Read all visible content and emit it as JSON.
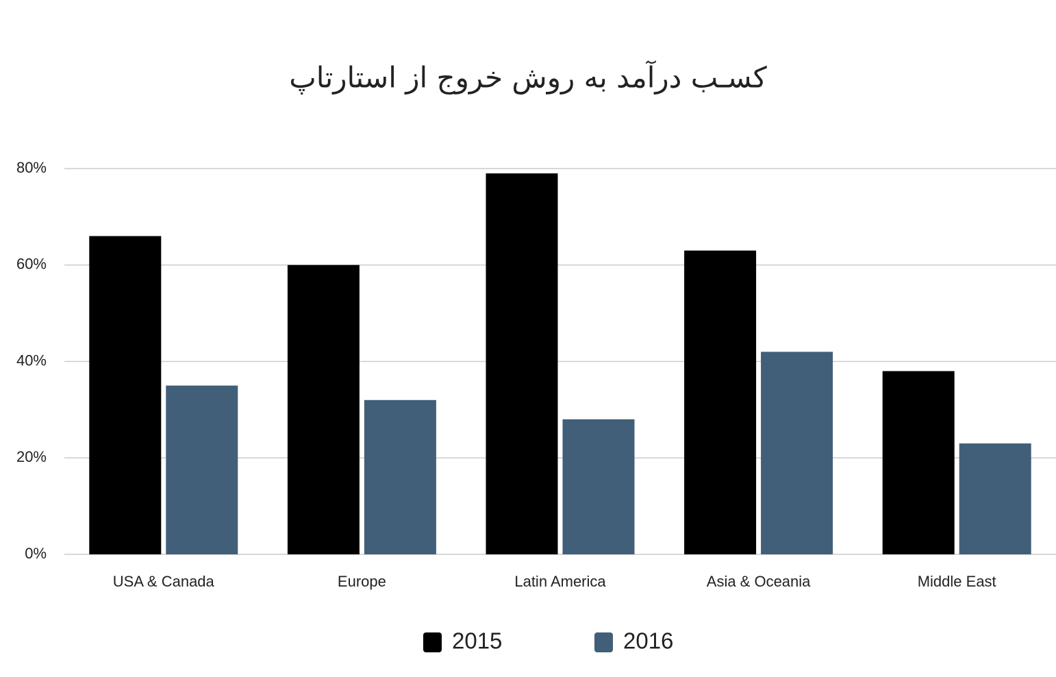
{
  "chart_data": {
    "type": "bar",
    "title": "کسـب درآمد به روش خروج از استارتاپ",
    "categories": [
      "USA & Canada",
      "Europe",
      "Latin America",
      "Asia & Oceania",
      "Middle East"
    ],
    "series": [
      {
        "name": "2015",
        "color": "#000000",
        "values": [
          66,
          60,
          79,
          63,
          38
        ]
      },
      {
        "name": "2016",
        "color": "#415f78",
        "values": [
          35,
          32,
          28,
          42,
          23
        ]
      }
    ],
    "ylim": [
      0,
      80
    ],
    "yticks": [
      {
        "value": 0,
        "label": "0%"
      },
      {
        "value": 20,
        "label": "20%"
      },
      {
        "value": 40,
        "label": "40%"
      },
      {
        "value": 60,
        "label": "60%"
      },
      {
        "value": 80,
        "label": "80%"
      }
    ],
    "grid": true,
    "legend": "bottom"
  }
}
